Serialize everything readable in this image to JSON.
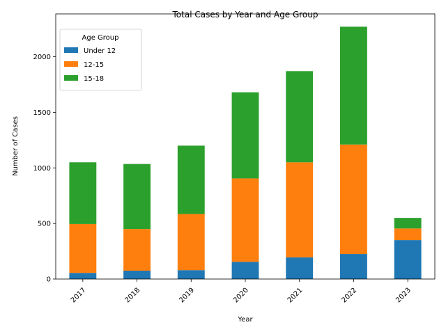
{
  "chart_data": {
    "type": "bar",
    "stacked": true,
    "title": "Total Cases by Year and Age Group",
    "xlabel": "Year",
    "ylabel": "Number of Cases",
    "categories": [
      "2017",
      "2018",
      "2019",
      "2020",
      "2021",
      "2022",
      "2023"
    ],
    "series": [
      {
        "name": "Under 12",
        "color": "#1f77b4",
        "values": [
          55,
          75,
          80,
          155,
          195,
          225,
          350
        ]
      },
      {
        "name": "12-15",
        "color": "#ff7f0e",
        "values": [
          440,
          375,
          505,
          750,
          855,
          985,
          105
        ]
      },
      {
        "name": "15-18",
        "color": "#2ca02c",
        "values": [
          555,
          585,
          615,
          775,
          820,
          1060,
          95
        ]
      }
    ],
    "ylim": [
      0,
      2385
    ],
    "yticks": [
      0,
      500,
      1000,
      1500,
      2000
    ],
    "legend": {
      "title": "Age Group",
      "position": "top-left"
    },
    "grid": false
  }
}
